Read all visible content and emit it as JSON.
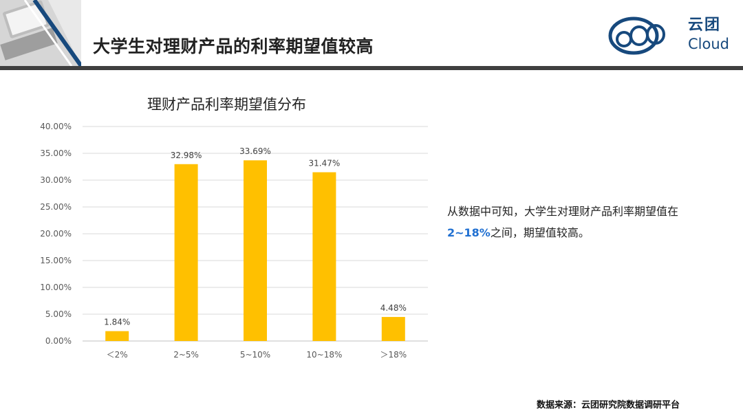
{
  "slide": {
    "title": "大学生对理财产品的利率期望值较高",
    "source": "数据来源：云团研究院数据调研平台"
  },
  "logo": {
    "cn": "云团",
    "en": "Cloud"
  },
  "note": {
    "before": "从数据中可知，大学生对理财产品利率期望值在",
    "highlight": "2~18%",
    "after": "之间，期望值较高。"
  },
  "colors": {
    "bar": "#FFC000",
    "logo": "#17497d",
    "highlight": "#1f6fd1",
    "header_rule": "#3f3f3f"
  },
  "chart_data": {
    "type": "bar",
    "title": "理财产品利率期望值分布",
    "categories": [
      "＜2%",
      "2~5%",
      "5~10%",
      "10~18%",
      "＞18%"
    ],
    "values": [
      1.84,
      32.98,
      33.69,
      31.47,
      4.48
    ],
    "data_labels": [
      "1.84%",
      "32.98%",
      "33.69%",
      "31.47%",
      "4.48%"
    ],
    "ylim": [
      0,
      40
    ],
    "yticks": [
      0,
      5,
      10,
      15,
      20,
      25,
      30,
      35,
      40
    ],
    "ytick_labels": [
      "0.00%",
      "5.00%",
      "10.00%",
      "15.00%",
      "20.00%",
      "25.00%",
      "30.00%",
      "35.00%",
      "40.00%"
    ],
    "grid": true,
    "legend": "none"
  }
}
